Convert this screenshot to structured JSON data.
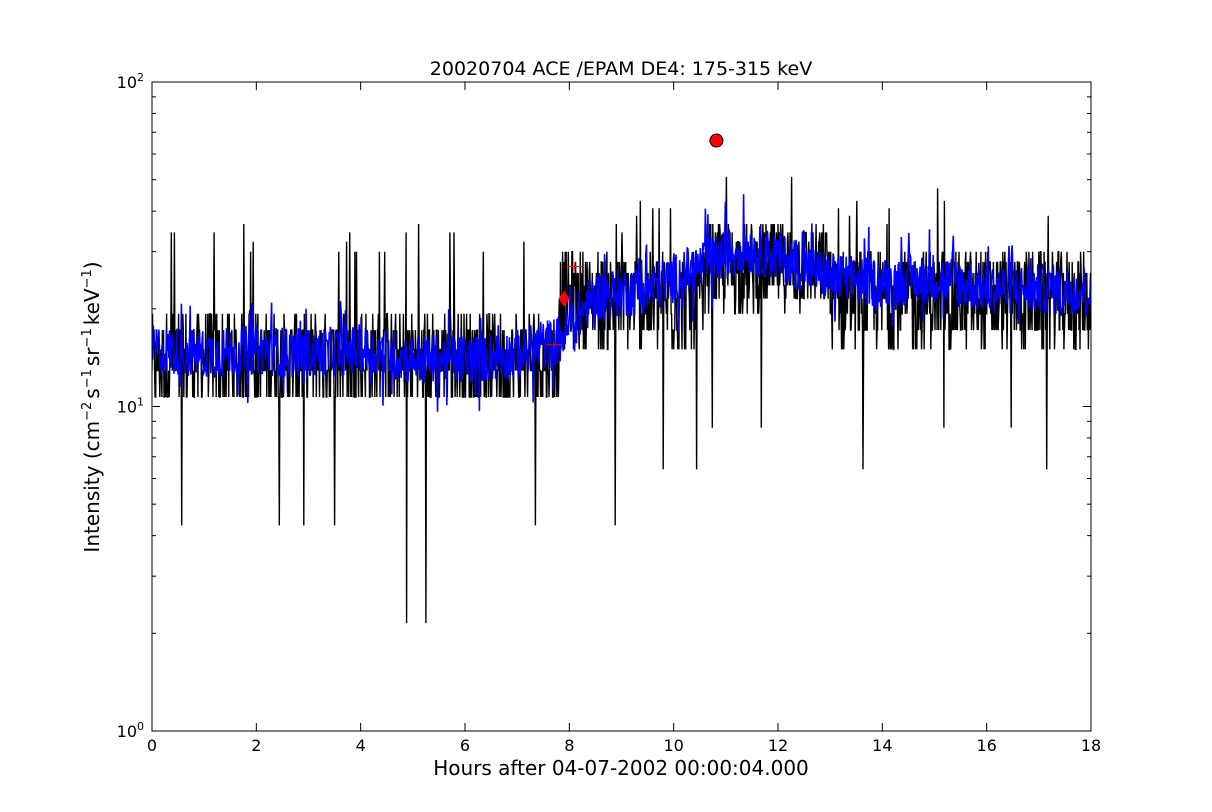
{
  "chart_data": {
    "type": "line",
    "title": "20020704 ACE /EPAM DE4: 175-315 keV",
    "xlabel": "Hours after 04-07-2002 00:00:04.000",
    "ylabel_parts": {
      "prefix": "Intensity (cm",
      "sup1": "−2",
      "mid1": "s",
      "sup2": "−1",
      "mid2": "sr",
      "sup3": "−1",
      "mid3": "keV",
      "sup4": "−1",
      "suffix": ")"
    },
    "xlim": [
      0,
      18
    ],
    "ylim": [
      1,
      100
    ],
    "yscale": "log",
    "x_ticks": [
      0,
      2,
      4,
      6,
      8,
      10,
      12,
      14,
      16,
      18
    ],
    "x_tick_labels": [
      "0",
      "2",
      "4",
      "6",
      "8",
      "10",
      "12",
      "14",
      "16",
      "18"
    ],
    "y_tick_base": "10",
    "y_tick_exponents": [
      "0",
      "1",
      "2"
    ],
    "grid": false,
    "series": [
      {
        "color": "#000000",
        "style": "raw",
        "segments": [
          {
            "x": [
              0,
              7.8
            ],
            "low": 8.6,
            "high": 23,
            "base": 13.5,
            "spikes_down": [
              4.3,
              2.1
            ],
            "spikes_up": [
              34
            ]
          },
          {
            "x": [
              7.8,
              10.6
            ],
            "low": 13,
            "high": 35,
            "base": 21,
            "spikes_down": [
              6.4,
              4.3
            ],
            "spikes_up": [
              40
            ]
          },
          {
            "x": [
              10.6,
              13
            ],
            "low": 17,
            "high": 42,
            "base": 27,
            "spikes_down": [
              8.6
            ],
            "spikes_up": [
              51
            ]
          },
          {
            "x": [
              13,
              18
            ],
            "low": 13,
            "high": 35,
            "base": 22,
            "spikes_down": [
              6.4,
              8.6
            ],
            "spikes_up": [
              42
            ]
          }
        ]
      },
      {
        "color": "#0000ff",
        "style": "smoothed",
        "points": [
          [
            0,
            15
          ],
          [
            1,
            14.5
          ],
          [
            2,
            15
          ],
          [
            3,
            14.5
          ],
          [
            4,
            15
          ],
          [
            5,
            14
          ],
          [
            6,
            14
          ],
          [
            7,
            14.5
          ],
          [
            7.8,
            16
          ],
          [
            8.5,
            22
          ],
          [
            9.5,
            23
          ],
          [
            10.5,
            27
          ],
          [
            11.3,
            31
          ],
          [
            12,
            29
          ],
          [
            13,
            25
          ],
          [
            14,
            24
          ],
          [
            15,
            25
          ],
          [
            16,
            23
          ],
          [
            17,
            23
          ],
          [
            18,
            23
          ]
        ],
        "noise": 0.18
      }
    ],
    "markers": [
      {
        "x": 10.82,
        "y": 66,
        "shape": "circle",
        "color": "#ff0000"
      },
      {
        "x": 7.9,
        "y": 21.5,
        "shape": "diamond",
        "color": "#ff0000"
      }
    ],
    "error_marks": [
      {
        "x": 7.7,
        "y": 15.5,
        "color": "#ff0000"
      },
      {
        "x": 8.1,
        "y": 27,
        "color": "#ff0000"
      }
    ]
  }
}
